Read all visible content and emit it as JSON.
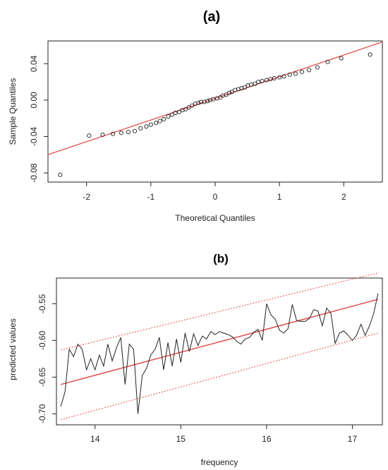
{
  "chart_data": [
    {
      "type": "scatter",
      "title": "(a)",
      "xlabel": "Theoretical Quantiles",
      "ylabel": "Sample Quantiles",
      "xlim": [
        -2.6,
        2.6
      ],
      "ylim": [
        -0.09,
        0.065
      ],
      "xticks": [
        -2,
        -1,
        0,
        1,
        2
      ],
      "xtick_labels": [
        "-2",
        "-1",
        "0",
        "1",
        "2"
      ],
      "yticks": [
        -0.08,
        -0.04,
        0.0,
        0.04
      ],
      "ytick_labels": [
        "-0.08",
        "-0.04",
        "0.00",
        "0.04"
      ],
      "grid": false,
      "colors": {
        "points": "#222222",
        "reference_line": "#e05050"
      },
      "reference_line": {
        "x": [
          -2.6,
          2.6
        ],
        "y": [
          -0.0599,
          0.0638
        ]
      },
      "series": [
        {
          "marker": "circle-open",
          "x": [
            -2.41,
            -1.96,
            -1.75,
            -1.59,
            -1.46,
            -1.35,
            -1.25,
            -1.16,
            -1.07,
            -1.0,
            -0.92,
            -0.86,
            -0.8,
            -0.73,
            -0.67,
            -0.62,
            -0.56,
            -0.51,
            -0.46,
            -0.41,
            -0.36,
            -0.31,
            -0.26,
            -0.22,
            -0.17,
            -0.12,
            -0.08,
            -0.03,
            0.03,
            0.08,
            0.12,
            0.17,
            0.22,
            0.26,
            0.31,
            0.36,
            0.41,
            0.46,
            0.51,
            0.56,
            0.62,
            0.67,
            0.73,
            0.8,
            0.86,
            0.92,
            1.0,
            1.07,
            1.16,
            1.25,
            1.35,
            1.46,
            1.59,
            1.75,
            1.96,
            2.41
          ],
          "y": [
            -0.082,
            -0.039,
            -0.038,
            -0.037,
            -0.036,
            -0.035,
            -0.034,
            -0.031,
            -0.029,
            -0.027,
            -0.025,
            -0.023,
            -0.021,
            -0.018,
            -0.016,
            -0.014,
            -0.013,
            -0.011,
            -0.01,
            -0.008,
            -0.006,
            -0.004,
            -0.003,
            -0.002,
            -0.002,
            -0.001,
            0.0,
            0.001,
            0.002,
            0.003,
            0.005,
            0.006,
            0.008,
            0.009,
            0.011,
            0.012,
            0.013,
            0.014,
            0.016,
            0.017,
            0.018,
            0.02,
            0.021,
            0.022,
            0.023,
            0.024,
            0.025,
            0.026,
            0.028,
            0.029,
            0.031,
            0.033,
            0.036,
            0.042,
            0.046,
            0.05
          ]
        }
      ]
    },
    {
      "type": "line",
      "title": "(b)",
      "xlabel": "frequency",
      "ylabel": "predicted values",
      "xlim": [
        13.55,
        17.35
      ],
      "ylim": [
        -0.715,
        -0.515
      ],
      "xticks": [
        14,
        15,
        16,
        17
      ],
      "xtick_labels": [
        "14",
        "15",
        "16",
        "17"
      ],
      "yticks": [
        -0.7,
        -0.65,
        -0.6,
        -0.55
      ],
      "ytick_labels": [
        "-0.70",
        "-0.65",
        "-0.60",
        "-0.55"
      ],
      "grid": false,
      "colors": {
        "series": "#222222",
        "fit": "#e05050",
        "bands": "#e05050"
      },
      "fit_line": {
        "x": [
          13.6,
          17.3
        ],
        "y": [
          -0.66,
          -0.544
        ]
      },
      "upper_band": {
        "x": [
          13.6,
          17.3
        ],
        "y": [
          -0.613,
          -0.508
        ]
      },
      "lower_band": {
        "x": [
          13.6,
          17.3
        ],
        "y": [
          -0.708,
          -0.59
        ]
      },
      "series": [
        {
          "x": [
            13.6,
            13.65,
            13.7,
            13.75,
            13.8,
            13.85,
            13.9,
            13.95,
            14.0,
            14.05,
            14.1,
            14.15,
            14.2,
            14.25,
            14.3,
            14.35,
            14.4,
            14.45,
            14.5,
            14.55,
            14.6,
            14.65,
            14.7,
            14.75,
            14.8,
            14.85,
            14.9,
            14.95,
            15.0,
            15.05,
            15.1,
            15.15,
            15.2,
            15.25,
            15.3,
            15.35,
            15.4,
            15.45,
            15.5,
            15.55,
            15.6,
            15.65,
            15.7,
            15.75,
            15.8,
            15.85,
            15.9,
            15.95,
            16.0,
            16.05,
            16.1,
            16.15,
            16.2,
            16.25,
            16.3,
            16.35,
            16.4,
            16.45,
            16.5,
            16.55,
            16.6,
            16.65,
            16.7,
            16.75,
            16.8,
            16.85,
            16.9,
            16.95,
            17.0,
            17.05,
            17.1,
            17.15,
            17.2,
            17.25,
            17.3
          ],
          "y": [
            -0.69,
            -0.67,
            -0.612,
            -0.622,
            -0.605,
            -0.612,
            -0.64,
            -0.625,
            -0.64,
            -0.62,
            -0.635,
            -0.605,
            -0.628,
            -0.61,
            -0.596,
            -0.66,
            -0.605,
            -0.612,
            -0.7,
            -0.648,
            -0.638,
            -0.62,
            -0.612,
            -0.596,
            -0.64,
            -0.603,
            -0.635,
            -0.598,
            -0.63,
            -0.59,
            -0.615,
            -0.591,
            -0.607,
            -0.594,
            -0.598,
            -0.588,
            -0.592,
            -0.588,
            -0.59,
            -0.592,
            -0.595,
            -0.601,
            -0.605,
            -0.598,
            -0.596,
            -0.589,
            -0.585,
            -0.6,
            -0.55,
            -0.565,
            -0.571,
            -0.586,
            -0.59,
            -0.584,
            -0.551,
            -0.573,
            -0.574,
            -0.574,
            -0.57,
            -0.558,
            -0.56,
            -0.58,
            -0.556,
            -0.563,
            -0.604,
            -0.59,
            -0.587,
            -0.593,
            -0.6,
            -0.593,
            -0.578,
            -0.593,
            -0.58,
            -0.563,
            -0.536
          ]
        }
      ]
    }
  ]
}
